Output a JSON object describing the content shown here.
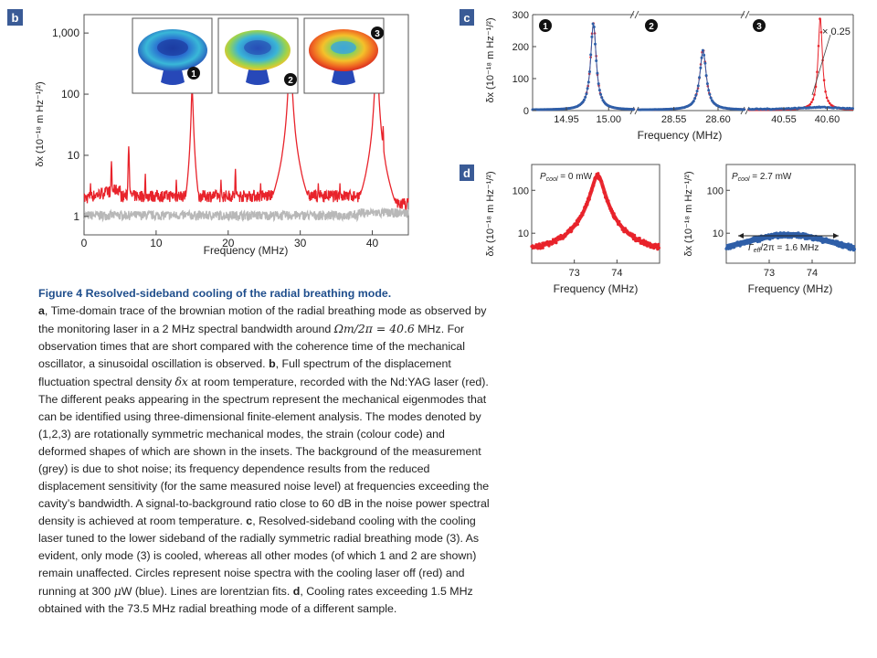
{
  "panel_labels": {
    "b": "b",
    "c": "c",
    "d": "d"
  },
  "colors": {
    "signal": "#e8232b",
    "background": "#b8b8b8",
    "cooled": "#2f5fa8",
    "label_bg": "#3a5b96",
    "title": "#1f4e8c"
  },
  "chart_data": [
    {
      "id": "b",
      "type": "line",
      "xlabel": "Frequency (MHz)",
      "ylabel": "δx (10⁻¹⁸ m Hz⁻¹/²)",
      "xlim": [
        0,
        45
      ],
      "ylim": [
        0.5,
        2000
      ],
      "yscale": "log",
      "x_ticks": [
        0,
        10,
        20,
        30,
        40
      ],
      "y_ticks": [
        {
          "value": 1,
          "label": "1"
        },
        {
          "value": 10,
          "label": "10"
        },
        {
          "value": 100,
          "label": "100"
        },
        {
          "value": 1000,
          "label": "1,000"
        }
      ],
      "series": [
        {
          "color": "grey",
          "baseline": 1.05,
          "peaks": []
        },
        {
          "color": "red",
          "baseline": 2.2,
          "peaks": [
            {
              "x": 0.9,
              "y": 3.5
            },
            {
              "x": 3.8,
              "y": 8
            },
            {
              "x": 6.2,
              "y": 14
            },
            {
              "x": 8.5,
              "y": 5
            },
            {
              "x": 12.8,
              "y": 4
            },
            {
              "x": 15.0,
              "y": 120
            },
            {
              "x": 19.0,
              "y": 4
            },
            {
              "x": 21.0,
              "y": 6
            },
            {
              "x": 24.5,
              "y": 3.5
            },
            {
              "x": 27.5,
              "y": 4
            },
            {
              "x": 28.6,
              "y": 900
            },
            {
              "x": 29.2,
              "y": 10
            },
            {
              "x": 32.5,
              "y": 3.5
            },
            {
              "x": 35.5,
              "y": 3.5
            },
            {
              "x": 39.2,
              "y": 5
            },
            {
              "x": 40.6,
              "y": 800
            },
            {
              "x": 41.5,
              "y": 30
            }
          ]
        }
      ],
      "inset_labels": [
        "1",
        "2",
        "3"
      ]
    },
    {
      "id": "c",
      "type": "line",
      "xlabel": "Frequency (MHz)",
      "ylabel": "δx (10⁻¹⁸ m Hz⁻¹/²)",
      "ylim": [
        0,
        300
      ],
      "y_ticks": [
        0,
        100,
        200,
        300
      ],
      "annotation": "× 0.25",
      "segments": [
        {
          "mode_label": "1",
          "xlim": [
            14.91,
            15.03
          ],
          "x_ticks": [
            "14.95",
            "15.00"
          ],
          "center": 14.982,
          "red_peak": 270,
          "blue_peak": 270,
          "width": 0.004
        },
        {
          "mode_label": "2",
          "xlim": [
            28.51,
            28.63
          ],
          "x_ticks": [
            "28.55",
            "28.60"
          ],
          "center": 28.583,
          "red_peak": 185,
          "blue_peak": 185,
          "width": 0.0045
        },
        {
          "mode_label": "3",
          "xlim": [
            40.51,
            40.63
          ],
          "x_ticks": [
            "40.55",
            "40.60"
          ],
          "center": 40.592,
          "red_peak": 290,
          "blue_peak": 7,
          "width": 0.003
        }
      ]
    },
    {
      "id": "d1",
      "type": "line",
      "xlabel": "Frequency (MHz)",
      "ylabel": "δx (10⁻¹⁸ m Hz⁻¹/²)",
      "legend": "P",
      "legend_sub": "cool",
      "legend_value": " = 0 mW",
      "xlim": [
        72.0,
        75.0
      ],
      "yscale": "log",
      "ylim": [
        2,
        400
      ],
      "x_ticks": [
        73,
        74
      ],
      "y_ticks": [
        {
          "value": 10,
          "label": "10"
        },
        {
          "value": 100,
          "label": "100"
        }
      ],
      "series": [
        {
          "color": "red",
          "center": 73.55,
          "peak": 220,
          "width": 0.13,
          "floor": 3
        }
      ]
    },
    {
      "id": "d2",
      "type": "line",
      "xlabel": "Frequency (MHz)",
      "ylabel": "δx (10⁻¹⁸ m Hz⁻¹/²)",
      "legend": "P",
      "legend_sub": "cool",
      "legend_value": " = 2.7 mW",
      "xlim": [
        72.0,
        75.0
      ],
      "yscale": "log",
      "ylim": [
        2,
        400
      ],
      "x_ticks": [
        73,
        74
      ],
      "y_ticks": [
        {
          "value": 10,
          "label": "10"
        },
        {
          "value": 100,
          "label": "100"
        }
      ],
      "annotation": "Γ",
      "annotation_sub": "eff",
      "annotation_value": "/2π = 1.6 MHz",
      "series": [
        {
          "color": "blue",
          "center": 73.45,
          "peak": 8,
          "width": 1.3,
          "floor": 1.2
        }
      ]
    }
  ],
  "caption": {
    "title": "Figure 4 Resolved-sideband cooling of the radial breathing mode.",
    "a_label": "a",
    "a_text": ", Time-domain trace of the brownian motion of the radial breathing mode as observed by the monitoring laser in a 2 MHz spectral bandwidth around",
    "a_math": "Ωm/2π = 40.6",
    "a_text2": " MHz. For observation times that are short compared with the coherence time of the mechanical oscillator, a sinusoidal oscillation is observed.",
    "b_label": "b",
    "b_text": ", Full spectrum of the displacement fluctuation spectral density ",
    "b_math": "δx",
    "b_text2": " at room temperature, recorded with the Nd:YAG laser (red). The different peaks appearing in the spectrum represent the mechanical eigenmodes that can be identified using three-dimensional finite-element analysis. The modes denoted by (1,2,3) are rotationally symmetric mechanical modes, the strain (colour code) and deformed shapes of which are shown in the insets. The background of the measurement (grey) is due to shot noise; its frequency dependence results from the reduced displacement sensitivity (for the same measured noise level) at frequencies exceeding the cavity’s bandwidth. A signal-to-background ratio close to 60 dB in the noise power spectral density is achieved at room temperature.",
    "c_label": "c",
    "c_text": ", Resolved-sideband cooling with the cooling laser tuned to the lower sideband of the radially symmetric radial breathing mode (3). As evident, only mode (3) is cooled, whereas all other modes (of which 1 and 2 are shown) remain unaffected. Circles represent noise spectra with the cooling laser off (red) and running at 300",
    "c_math": "μ",
    "c_text2": "W (blue). Lines are lorentzian fits.",
    "d_label": "d",
    "d_text": ", Cooling rates exceeding 1.5 MHz obtained with the 73.5 MHz radial breathing mode of a different sample."
  }
}
